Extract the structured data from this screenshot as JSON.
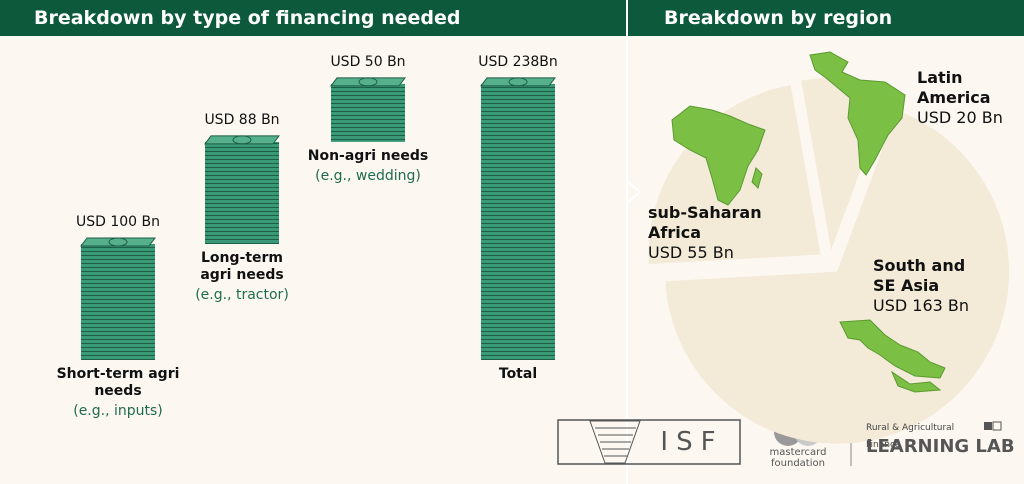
{
  "chart_data": [
    {
      "type": "waterfall",
      "title": "Breakdown by type of financing needed",
      "categories": [
        "Short-term agri needs",
        "Long-term agri needs",
        "Non-agri needs",
        "Total"
      ],
      "category_notes": [
        "(e.g., inputs)",
        "(e.g., tractor)",
        "(e.g., wedding)",
        null
      ],
      "values": [
        100,
        88,
        50,
        238
      ],
      "value_labels": [
        "USD 100 Bn",
        "USD 88 Bn",
        "USD 50 Bn",
        "USD 238Bn"
      ],
      "total_index": 3,
      "color": "#3a9a78"
    },
    {
      "type": "pie",
      "title": "Breakdown by region",
      "categories": [
        "Latin America",
        "South and SE Asia",
        "sub-Saharan Africa"
      ],
      "values": [
        20,
        163,
        55
      ],
      "value_labels": [
        "USD 20 Bn",
        "USD 163 Bn",
        "USD 55 Bn"
      ],
      "color": "#f3ead8"
    }
  ],
  "footer": {
    "isf": "ISF",
    "foundation": "mastercard foundation",
    "lab_subtitle": "Rural & Agricultural Finance",
    "lab_title": "LEARNING LAB"
  }
}
